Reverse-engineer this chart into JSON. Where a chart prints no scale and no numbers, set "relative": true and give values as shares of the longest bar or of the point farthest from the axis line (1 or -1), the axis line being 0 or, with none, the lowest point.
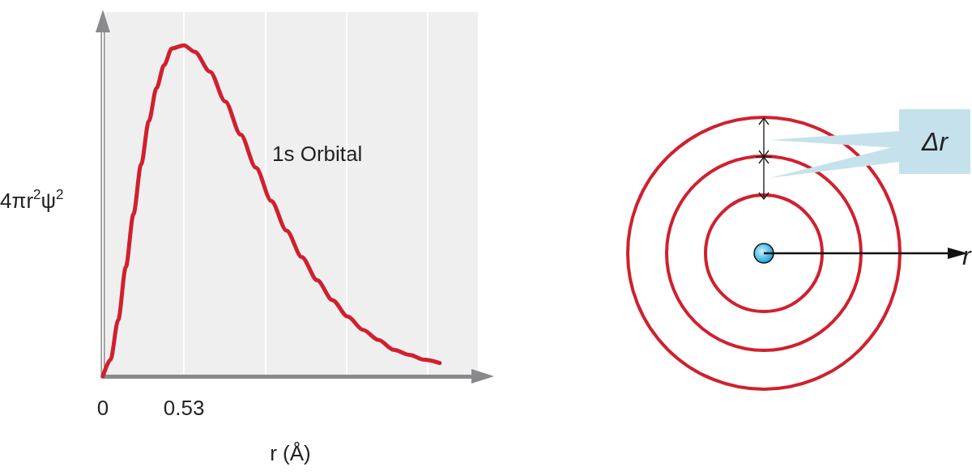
{
  "chart_data": {
    "type": "line",
    "relative": true,
    "xlabel": "r (Å)",
    "ylabel": "4πr$^{2}$ψ$^{2}$",
    "x": [
      0,
      0.05,
      0.1,
      0.15,
      0.2,
      0.25,
      0.3,
      0.35,
      0.4,
      0.45,
      0.53,
      0.6,
      0.7,
      0.8,
      0.9,
      1.0,
      1.1,
      1.2,
      1.3,
      1.4,
      1.5,
      1.6,
      1.7,
      1.8,
      1.9,
      2.0,
      2.1,
      2.2
    ],
    "series": [
      {
        "name": "1s Orbital",
        "color": "#d0202e",
        "values": [
          0,
          0.05,
          0.17,
          0.33,
          0.49,
          0.64,
          0.77,
          0.87,
          0.94,
          0.99,
          1,
          0.98,
          0.92,
          0.83,
          0.73,
          0.63,
          0.53,
          0.44,
          0.36,
          0.29,
          0.23,
          0.18,
          0.14,
          0.11,
          0.08,
          0.065,
          0.05,
          0.04
        ]
      }
    ],
    "xlim": [
      0,
      2.45
    ],
    "xticks": [
      0,
      0.53,
      {
        "value": 1.06,
        "label": null
      },
      {
        "value": 1.59,
        "label": null
      },
      {
        "value": 2.12,
        "label": null
      }
    ],
    "grid": "x",
    "marker": "none",
    "line_style": "solid",
    "legend": false,
    "annotations": [
      "Δr",
      "r"
    ]
  }
}
